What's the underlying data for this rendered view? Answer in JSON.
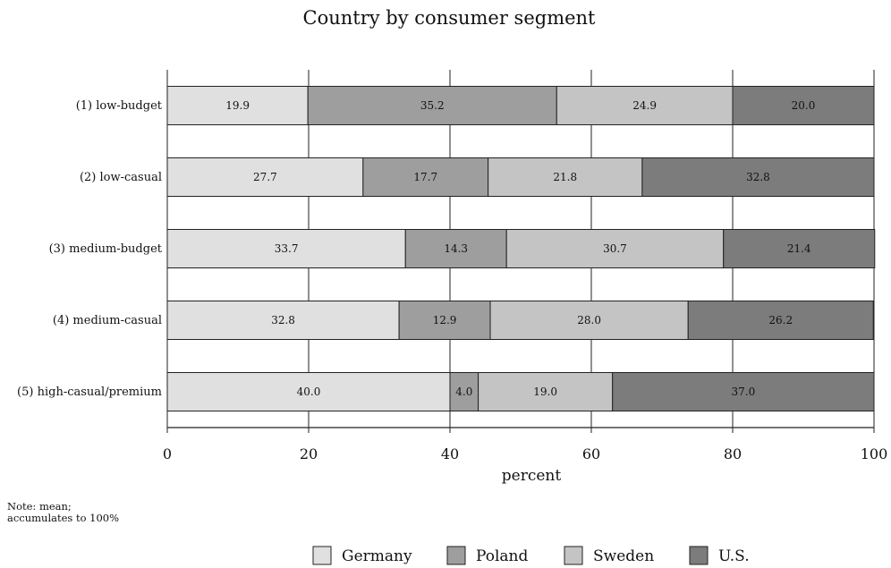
{
  "chart_data": {
    "type": "bar",
    "orientation": "horizontal",
    "stacked": true,
    "title": "Country by consumer segment",
    "xlabel": "percent",
    "ylabel": "",
    "xlim": [
      0,
      100
    ],
    "xticks": [
      "0",
      "20",
      "40",
      "60",
      "80",
      "100"
    ],
    "grid": true,
    "legend_position": "bottom",
    "categories": [
      "(1) low-budget",
      "(2) low-casual",
      "(3) medium-budget",
      "(4) medium-casual",
      "(5) high-casual/premium"
    ],
    "series": [
      {
        "name": "Germany",
        "color": "#e0e0e0",
        "values": [
          19.9,
          27.7,
          33.7,
          32.8,
          40.0
        ],
        "labels": [
          "19.9",
          "27.7",
          "33.7",
          "32.8",
          "40.0"
        ]
      },
      {
        "name": "Poland",
        "color": "#9e9e9e",
        "values": [
          35.2,
          17.7,
          14.3,
          12.9,
          4.0
        ],
        "labels": [
          "35.2",
          "17.7",
          "14.3",
          "12.9",
          "4.0"
        ]
      },
      {
        "name": "Sweden",
        "color": "#c4c4c4",
        "values": [
          24.9,
          21.8,
          30.7,
          28.0,
          19.0
        ],
        "labels": [
          "24.9",
          "21.8",
          "30.7",
          "28.0",
          "19.0"
        ]
      },
      {
        "name": "U.S.",
        "color": "#7c7c7c",
        "values": [
          20.0,
          32.8,
          21.4,
          26.2,
          37.0
        ],
        "labels": [
          "20.0",
          "32.8",
          "21.4",
          "26.2",
          "37.0"
        ]
      }
    ],
    "note": [
      "Note: mean;",
      "accumulates to 100%"
    ]
  }
}
